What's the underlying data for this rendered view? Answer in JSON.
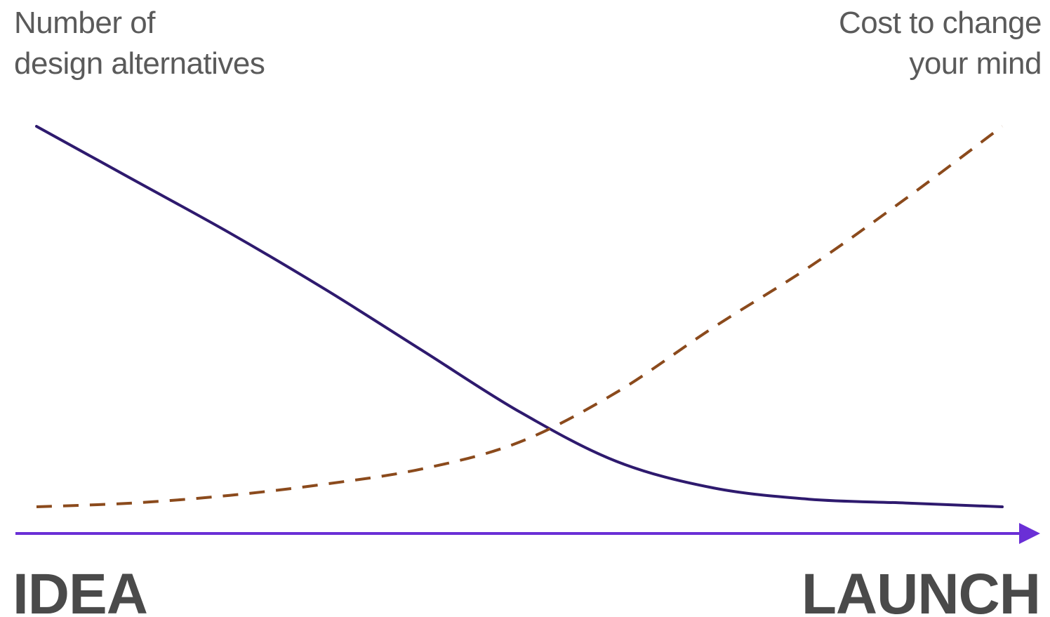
{
  "chart_data": {
    "type": "line",
    "xlabel_start": "IDEA",
    "xlabel_end": "LAUNCH",
    "left_axis_label": [
      "Number of",
      "design alternatives"
    ],
    "right_axis_label": [
      "Cost to change",
      "your mind"
    ],
    "xlim": [
      0,
      1
    ],
    "ylim": [
      0,
      1
    ],
    "x": [
      0,
      0.1,
      0.2,
      0.3,
      0.4,
      0.5,
      0.6,
      0.7,
      0.8,
      0.9,
      1.0
    ],
    "series": [
      {
        "name": "Number of design alternatives",
        "axis": "left",
        "style": "solid",
        "color": "#2e1a6e",
        "values": [
          1.0,
          0.86,
          0.72,
          0.57,
          0.41,
          0.25,
          0.12,
          0.05,
          0.02,
          0.01,
          0.0
        ]
      },
      {
        "name": "Cost to change your mind",
        "axis": "right",
        "style": "dashed",
        "color": "#8b4a1c",
        "values": [
          0.0,
          0.01,
          0.03,
          0.06,
          0.1,
          0.17,
          0.3,
          0.47,
          0.63,
          0.81,
          1.0
        ]
      }
    ],
    "axis_arrow_color": "#6a2fd6",
    "grid": false,
    "legend": "none"
  }
}
